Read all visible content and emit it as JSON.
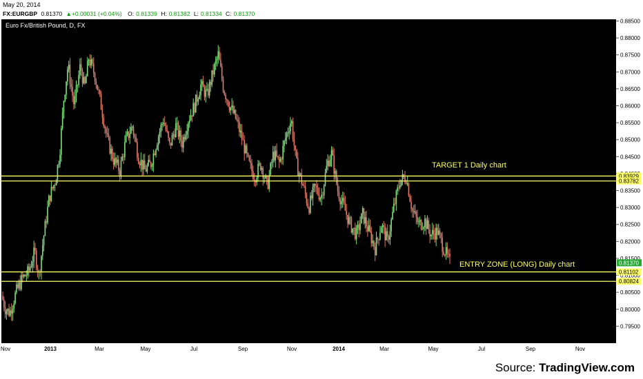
{
  "header": {
    "date": "May 20, 2014",
    "symbol": "FX:EURGBP",
    "last": "0.81370",
    "change": "+0.00031 (+0.04%)",
    "open_label": "O:",
    "open": "0.81339",
    "high_label": "H:",
    "high": "0.81382",
    "low_label": "L:",
    "low": "0.81334",
    "close_label": "C:",
    "close": "0.81370"
  },
  "colors": {
    "background": "#000000",
    "up_candle": "#7ee07e",
    "down_candle": "#e07a6a",
    "levels": "#ffff66",
    "axis_text": "#000000",
    "price_tag": "#22aa33"
  },
  "footer": {
    "source_prefix": "Source: ",
    "source_name": "TradingView.com"
  },
  "chart_data": {
    "type": "candlestick",
    "title": "Euro Fx/British Pound, D, FX",
    "ylim": [
      0.79,
      0.8855
    ],
    "y_ticks": [
      0.885,
      0.88,
      0.875,
      0.87,
      0.865,
      0.86,
      0.855,
      0.85,
      0.845,
      0.84,
      0.835,
      0.83,
      0.825,
      0.82,
      0.815,
      0.81,
      0.805,
      0.8,
      0.795
    ],
    "y_tick_labels": [
      "0.88500",
      "0.88000",
      "0.87500",
      "0.87000",
      "0.86500",
      "0.86000",
      "0.85500",
      "0.85000",
      "0.84500",
      "0.84000",
      "0.83500",
      "0.83000",
      "0.82500",
      "0.82000",
      "0.81500",
      "0.81000",
      "0.80500",
      "0.80000",
      "0.79500"
    ],
    "x_labels": [
      "Nov",
      "2013",
      "Mar",
      "May",
      "Jul",
      "Sep",
      "Nov",
      "2014",
      "Mar",
      "May",
      "Jul",
      "Sep",
      "Nov"
    ],
    "x_label_bold": [
      false,
      true,
      false,
      false,
      false,
      false,
      false,
      true,
      false,
      false,
      false,
      false,
      false
    ],
    "last_price": 0.8137,
    "last_price_label": "0.81370",
    "levels": [
      {
        "value": 0.83929,
        "label": "0.83929"
      },
      {
        "value": 0.83782,
        "label": "0.83782"
      },
      {
        "value": 0.81102,
        "label": "0.81102"
      },
      {
        "value": 0.80824,
        "label": "0.80824"
      }
    ],
    "annotations": [
      {
        "text": "TARGET 1 Daily chart",
        "near_value": 0.8426
      },
      {
        "text": "ENTRY ZONE (LONG) Daily chart",
        "near_value": 0.8134
      }
    ],
    "price_path": [
      [
        0,
        0.804
      ],
      [
        0.01,
        0.8
      ],
      [
        0.02,
        0.799
      ],
      [
        0.035,
        0.805
      ],
      [
        0.05,
        0.809
      ],
      [
        0.065,
        0.811
      ],
      [
        0.08,
        0.817
      ],
      [
        0.09,
        0.81
      ],
      [
        0.1,
        0.82
      ],
      [
        0.115,
        0.833
      ],
      [
        0.13,
        0.838
      ],
      [
        0.14,
        0.846
      ],
      [
        0.15,
        0.862
      ],
      [
        0.16,
        0.872
      ],
      [
        0.175,
        0.86
      ],
      [
        0.19,
        0.872
      ],
      [
        0.2,
        0.865
      ],
      [
        0.21,
        0.874
      ],
      [
        0.225,
        0.869
      ],
      [
        0.24,
        0.86
      ],
      [
        0.255,
        0.85
      ],
      [
        0.27,
        0.844
      ],
      [
        0.285,
        0.841
      ],
      [
        0.3,
        0.85
      ],
      [
        0.315,
        0.854
      ],
      [
        0.33,
        0.845
      ],
      [
        0.345,
        0.841
      ],
      [
        0.36,
        0.843
      ],
      [
        0.375,
        0.85
      ],
      [
        0.39,
        0.856
      ],
      [
        0.405,
        0.848
      ],
      [
        0.42,
        0.854
      ],
      [
        0.435,
        0.849
      ],
      [
        0.45,
        0.856
      ],
      [
        0.465,
        0.86
      ],
      [
        0.48,
        0.866
      ],
      [
        0.495,
        0.863
      ],
      [
        0.51,
        0.87
      ],
      [
        0.522,
        0.875
      ],
      [
        0.535,
        0.865
      ],
      [
        0.55,
        0.86
      ],
      [
        0.565,
        0.856
      ],
      [
        0.58,
        0.85
      ],
      [
        0.595,
        0.843
      ],
      [
        0.61,
        0.839
      ],
      [
        0.625,
        0.843
      ],
      [
        0.64,
        0.836
      ],
      [
        0.655,
        0.846
      ],
      [
        0.67,
        0.843
      ],
      [
        0.685,
        0.851
      ],
      [
        0.698,
        0.856
      ],
      [
        0.71,
        0.843
      ],
      [
        0.725,
        0.837
      ],
      [
        0.74,
        0.83
      ],
      [
        0.755,
        0.836
      ],
      [
        0.77,
        0.833
      ],
      [
        0.785,
        0.843
      ],
      [
        0.795,
        0.846
      ],
      [
        0.81,
        0.835
      ],
      [
        0.825,
        0.83
      ],
      [
        0.84,
        0.825
      ],
      [
        0.855,
        0.822
      ],
      [
        0.87,
        0.828
      ],
      [
        0.885,
        0.823
      ],
      [
        0.9,
        0.818
      ],
      [
        0.915,
        0.825
      ],
      [
        0.93,
        0.82
      ],
      [
        0.945,
        0.83
      ],
      [
        0.96,
        0.838
      ],
      [
        0.975,
        0.839
      ],
      [
        0.99,
        0.829
      ],
      [
        1.005,
        0.825
      ],
      [
        1.02,
        0.826
      ],
      [
        1.035,
        0.822
      ],
      [
        1.05,
        0.823
      ],
      [
        1.065,
        0.818
      ],
      [
        1.08,
        0.8137
      ]
    ]
  }
}
